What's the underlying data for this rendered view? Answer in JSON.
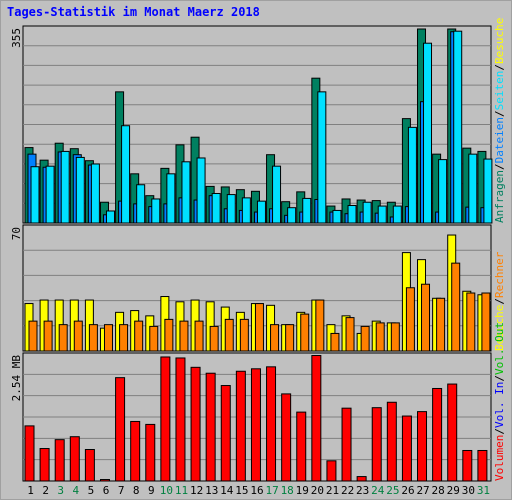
{
  "title": "Tages-Statistik im Monat Maerz 2018",
  "colors": {
    "hits": "#008060",
    "files": "#0080ff",
    "pages": "#00e0ff",
    "visits": "#ffff00",
    "sites": "#ff8000",
    "volume": "#ff0000",
    "vol_in": "#0000ff",
    "vol_out": "#00c000",
    "background": "#c0c0c0",
    "panel": "#c0c0c0",
    "weekend": "#008040"
  },
  "chart_data": [
    {
      "type": "bar",
      "panel": "top",
      "ymax_label": "355",
      "ymax": 355,
      "categories": [
        "1",
        "2",
        "3",
        "4",
        "5",
        "6",
        "7",
        "8",
        "9",
        "10",
        "11",
        "12",
        "13",
        "14",
        "15",
        "16",
        "17",
        "18",
        "19",
        "20",
        "21",
        "22",
        "23",
        "24",
        "25",
        "26",
        "27",
        "28",
        "29",
        "30",
        "31"
      ],
      "legend": [
        {
          "text": "Anfragen",
          "color": "#008060"
        },
        {
          "text": "/",
          "color": "#000000"
        },
        {
          "text": "Dateien",
          "color": "#0080ff"
        },
        {
          "text": "/",
          "color": "#000000"
        },
        {
          "text": "Seiten",
          "color": "#00e0ff"
        },
        {
          "text": "/",
          "color": "#000000"
        },
        {
          "text": "Besuche",
          "color": "#ffff00"
        }
      ],
      "series": [
        {
          "name": "Anfragen",
          "color": "#008060",
          "values": [
            138,
            115,
            146,
            136,
            114,
            38,
            240,
            90,
            50,
            100,
            143,
            157,
            67,
            66,
            61,
            58,
            125,
            39,
            57,
            265,
            31,
            44,
            42,
            41,
            38,
            191,
            355,
            126,
            355,
            137,
            131
          ]
        },
        {
          "name": "Dateien",
          "color": "#0080ff",
          "values": [
            126,
            102,
            130,
            125,
            106,
            15,
            40,
            35,
            30,
            35,
            46,
            42,
            50,
            26,
            23,
            20,
            26,
            14,
            20,
            43,
            20,
            17,
            20,
            18,
            11,
            30,
            222,
            20,
            350,
            29,
            28
          ]
        },
        {
          "name": "Seiten",
          "color": "#00e0ff",
          "values": [
            103,
            104,
            131,
            120,
            108,
            22,
            178,
            70,
            44,
            90,
            112,
            119,
            54,
            52,
            46,
            40,
            104,
            28,
            45,
            240,
            23,
            32,
            38,
            31,
            31,
            175,
            329,
            116,
            351,
            126,
            117
          ]
        }
      ]
    },
    {
      "type": "bar",
      "panel": "middle",
      "ymax_label": "70",
      "ymax": 70,
      "categories": [
        "1",
        "2",
        "3",
        "4",
        "5",
        "6",
        "7",
        "8",
        "9",
        "10",
        "11",
        "12",
        "13",
        "14",
        "15",
        "16",
        "17",
        "18",
        "19",
        "20",
        "21",
        "22",
        "23",
        "24",
        "25",
        "26",
        "27",
        "28",
        "29",
        "30",
        "31"
      ],
      "legend": [
        {
          "text": "Besuche",
          "color": "#ffff00"
        },
        {
          "text": "/",
          "color": "#000000"
        },
        {
          "text": "Rechner",
          "color": "#ff8000"
        }
      ],
      "series": [
        {
          "name": "Besuche",
          "color": "#ffff00",
          "values": [
            27,
            29,
            29,
            29,
            29,
            13,
            22,
            23,
            20,
            31,
            28,
            29,
            28,
            25,
            22,
            27,
            26,
            15,
            22,
            29,
            15,
            20,
            10,
            17,
            16,
            56,
            52,
            30,
            66,
            34,
            32
          ]
        },
        {
          "name": "Rechner",
          "color": "#ff8000",
          "values": [
            17,
            17,
            15,
            17,
            15,
            15,
            15,
            17,
            14,
            18,
            17,
            17,
            14,
            18,
            18,
            27,
            15,
            15,
            21,
            29,
            10,
            19,
            14,
            16,
            16,
            36,
            38,
            30,
            50,
            33,
            33
          ]
        }
      ]
    },
    {
      "type": "bar",
      "panel": "bottom",
      "ymax_label": "2.54 MB",
      "ymax": 2.54,
      "categories": [
        "1",
        "2",
        "3",
        "4",
        "5",
        "6",
        "7",
        "8",
        "9",
        "10",
        "11",
        "12",
        "13",
        "14",
        "15",
        "16",
        "17",
        "18",
        "19",
        "20",
        "21",
        "22",
        "23",
        "24",
        "25",
        "26",
        "27",
        "28",
        "29",
        "30",
        "31"
      ],
      "legend": [
        {
          "text": "Volumen",
          "color": "#ff0000"
        },
        {
          "text": "/",
          "color": "#000000"
        },
        {
          "text": "Vol. In",
          "color": "#0000ff"
        },
        {
          "text": "/",
          "color": "#000000"
        },
        {
          "text": "Vol. Out",
          "color": "#00c000"
        }
      ],
      "series": [
        {
          "name": "Volumen",
          "color": "#ff0000",
          "values": [
            1.12,
            0.66,
            0.84,
            0.9,
            0.64,
            0.03,
            2.1,
            1.21,
            1.15,
            2.52,
            2.5,
            2.31,
            2.19,
            1.94,
            2.23,
            2.28,
            2.32,
            1.77,
            1.4,
            2.55,
            0.41,
            1.48,
            0.09,
            1.49,
            1.6,
            1.32,
            1.41,
            1.88,
            1.97,
            0.62,
            0.62
          ]
        }
      ]
    }
  ],
  "x_labels": [
    "1",
    "2",
    "3",
    "4",
    "5",
    "6",
    "7",
    "8",
    "9",
    "10",
    "11",
    "12",
    "13",
    "14",
    "15",
    "16",
    "17",
    "18",
    "19",
    "20",
    "21",
    "22",
    "23",
    "24",
    "25",
    "26",
    "27",
    "28",
    "29",
    "30",
    "31"
  ],
  "weekend_days": [
    3,
    4,
    10,
    11,
    17,
    18,
    24,
    25,
    31
  ]
}
